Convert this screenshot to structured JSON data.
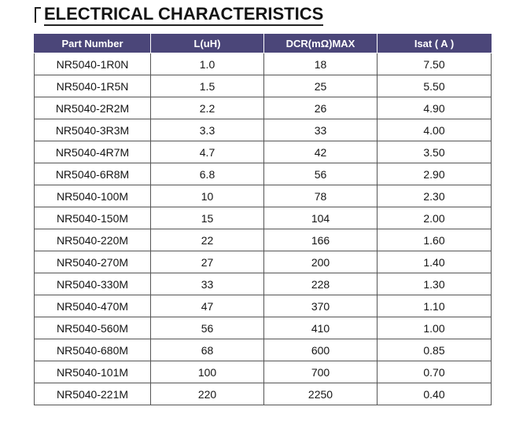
{
  "title": "ELECTRICAL CHARACTERISTICS",
  "columns": [
    "Part Number",
    "L(uH)",
    "DCR(mΩ)MAX",
    "Isat ( A )"
  ],
  "rows": [
    [
      "NR5040-1R0N",
      "1.0",
      "18",
      "7.50"
    ],
    [
      "NR5040-1R5N",
      "1.5",
      "25",
      "5.50"
    ],
    [
      "NR5040-2R2M",
      "2.2",
      "26",
      "4.90"
    ],
    [
      "NR5040-3R3M",
      "3.3",
      "33",
      "4.00"
    ],
    [
      "NR5040-4R7M",
      "4.7",
      "42",
      "3.50"
    ],
    [
      "NR5040-6R8M",
      "6.8",
      "56",
      "2.90"
    ],
    [
      "NR5040-100M",
      "10",
      "78",
      "2.30"
    ],
    [
      "NR5040-150M",
      "15",
      "104",
      "2.00"
    ],
    [
      "NR5040-220M",
      "22",
      "166",
      "1.60"
    ],
    [
      "NR5040-270M",
      "27",
      "200",
      "1.40"
    ],
    [
      "NR5040-330M",
      "33",
      "228",
      "1.30"
    ],
    [
      "NR5040-470M",
      "47",
      "370",
      "1.10"
    ],
    [
      "NR5040-560M",
      "56",
      "410",
      "1.00"
    ],
    [
      "NR5040-680M",
      "68",
      "600",
      "0.85"
    ],
    [
      "NR5040-101M",
      "100",
      "700",
      "0.70"
    ],
    [
      "NR5040-221M",
      "220",
      "2250",
      "0.40"
    ]
  ],
  "colors": {
    "header_bg": "#4b4679",
    "header_text": "#ffffff",
    "grid": "#555555"
  }
}
